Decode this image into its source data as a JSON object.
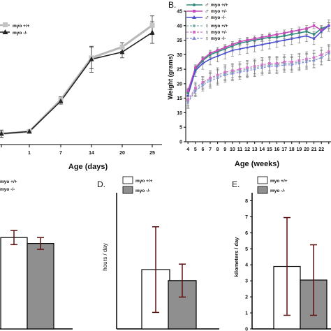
{
  "panels": {
    "A": {
      "xlabel": "Age (days)",
      "legend": [
        "myo +/+",
        "myo -/-"
      ]
    },
    "B": {
      "letter": "B.",
      "xlabel": "Age (weeks)",
      "ylabel": "Weight (grams)",
      "legend": [
        "myo +/+",
        "myo +/-",
        "myo -/-",
        "myo +/+",
        "myo +/-",
        "myo -/-"
      ]
    },
    "C": {
      "legend": [
        "myo +/+",
        "myo -/-"
      ]
    },
    "D": {
      "letter": "D.",
      "ylabel": "hours / day",
      "legend": [
        "myo +/+",
        "myo -/-"
      ]
    },
    "E": {
      "letter": "E.",
      "ylabel": "kilometers / day",
      "legend": [
        "myo +/+",
        "myo -/-"
      ]
    }
  },
  "colors": {
    "wt_line": "#b8b8b8",
    "ko_line": "#222222",
    "male_wt": "#2e8b7a",
    "male_het": "#c44bb8",
    "male_ko": "#4a4fd0",
    "female_wt": "#7fb0b0",
    "female_het": "#d070c8",
    "female_ko": "#8088d8",
    "bar_ko": "#8f8f8f",
    "error": "#5a1010"
  },
  "chart_data": [
    {
      "panel": "A",
      "type": "line",
      "x": [
        0,
        1,
        7,
        14,
        20,
        25
      ],
      "x_tick_labels": [
        "",
        "1",
        "7",
        "14",
        "20",
        "25"
      ],
      "xlabel": "Age (days)",
      "series": [
        {
          "name": "myo +/+",
          "values": [
            1.5,
            1.8,
            6.2,
            12.0,
            13.5,
            16.5
          ],
          "errors": [
            0.5,
            0.2,
            0.4,
            1.5,
            0.6,
            1.3
          ]
        },
        {
          "name": "myo -/-",
          "values": [
            1.5,
            1.8,
            6.0,
            11.8,
            12.8,
            15.5
          ],
          "errors": [
            0.5,
            0.2,
            0.4,
            1.8,
            0.8,
            1.5
          ]
        }
      ],
      "ylim": [
        0,
        20
      ]
    },
    {
      "panel": "B",
      "type": "line",
      "xlabel": "Age (weeks)",
      "ylabel": "Weight (grams)",
      "x": [
        4,
        5,
        6,
        7,
        8,
        9,
        10,
        11,
        12,
        13,
        14,
        15,
        16,
        17,
        18,
        19,
        20,
        21,
        22,
        23
      ],
      "x_tick_labels": [
        "4",
        "5",
        "6",
        "7",
        "8",
        "9",
        "10",
        "11",
        "12",
        "13",
        "14",
        "15",
        "16",
        "17",
        "18",
        "19",
        "20",
        "21",
        "22"
      ],
      "y_ticks": [
        0,
        5,
        10,
        15,
        20,
        25,
        30,
        35,
        40,
        45
      ],
      "ylim": [
        0,
        45
      ],
      "xlim": [
        3.7,
        23.3
      ],
      "series": [
        {
          "name": "myo +/+",
          "values": [
            17,
            25,
            28,
            30,
            31,
            32,
            33,
            34,
            34.5,
            35,
            35.5,
            36,
            36,
            36.5,
            37,
            37.5,
            38,
            37,
            39,
            40
          ],
          "errors": [
            1,
            1,
            1,
            1,
            1,
            1,
            1,
            1,
            1,
            1,
            1,
            1,
            1,
            1,
            1,
            1,
            1,
            1,
            1,
            1
          ]
        },
        {
          "name": "myo +/-",
          "values": [
            17.5,
            25.5,
            28.5,
            30.5,
            31.5,
            32.5,
            33.5,
            34.5,
            35,
            35.5,
            36,
            36.5,
            37,
            37.5,
            38,
            38.5,
            39,
            40,
            38.5,
            40
          ],
          "errors": [
            1,
            1,
            1,
            1,
            1,
            1,
            1,
            1,
            1,
            1,
            1,
            1,
            1,
            1,
            1,
            1,
            1,
            1,
            1,
            1
          ]
        },
        {
          "name": "myo -/-",
          "values": [
            16,
            24.5,
            27,
            28.5,
            29.5,
            30.5,
            31.5,
            32,
            32.5,
            33,
            33.5,
            34,
            34.5,
            35,
            35.5,
            36,
            36.5,
            35.5,
            38,
            40
          ],
          "errors": [
            2,
            2,
            2,
            2,
            2,
            2,
            2,
            2,
            2,
            2,
            2,
            2,
            2,
            2,
            2,
            2,
            2,
            2,
            2,
            2
          ]
        },
        {
          "name": "myo +/+",
          "values": [
            14,
            18,
            20,
            21.5,
            22.5,
            23.5,
            24,
            24.5,
            25,
            25.5,
            26,
            26.5,
            26.5,
            27,
            27,
            27.5,
            28,
            28,
            29,
            30.5
          ],
          "errors": [
            2,
            2,
            2,
            2.5,
            2.5,
            2.5,
            2.5,
            2.5,
            2.5,
            2.5,
            2.5,
            2.5,
            2.5,
            2.5,
            2.5,
            2.5,
            2.5,
            2.5,
            2.5,
            2.5
          ]
        },
        {
          "name": "myo +/-",
          "values": [
            14.5,
            18.5,
            20.5,
            22,
            23,
            24,
            24.5,
            25,
            25.5,
            26,
            26.5,
            27,
            27,
            27.5,
            27.5,
            28,
            28.5,
            29,
            30,
            31
          ],
          "errors": [
            2,
            2,
            2,
            2.5,
            2.5,
            2.5,
            2.5,
            2.5,
            2.5,
            2.5,
            2.5,
            2.5,
            2.5,
            2.5,
            2.5,
            2.5,
            2.5,
            2.5,
            2.5,
            2.5
          ]
        },
        {
          "name": "myo -/-",
          "values": [
            13.5,
            17.5,
            19.5,
            21,
            22,
            23,
            23.5,
            24,
            24.5,
            25,
            25.5,
            26,
            26,
            26.5,
            26.5,
            27,
            27.5,
            28,
            29,
            30.5
          ],
          "errors": [
            2,
            2,
            2,
            2.5,
            2.5,
            2.5,
            2.5,
            2.5,
            2.5,
            2.5,
            2.5,
            2.5,
            2.5,
            2.5,
            2.5,
            2.5,
            2.5,
            2.5,
            2.5,
            2.5
          ]
        }
      ]
    },
    {
      "panel": "C",
      "type": "bar",
      "categories": [
        "myo +/+",
        "myo -/-"
      ],
      "values": [
        1.55,
        1.45
      ],
      "errors": [
        0.12,
        0.1
      ],
      "ylim": [
        0,
        2.5
      ]
    },
    {
      "panel": "D",
      "type": "bar",
      "ylabel": "hours / day",
      "categories": [
        "myo +/+",
        "myo -/-"
      ],
      "values": [
        2.7,
        2.2
      ],
      "errors": [
        1.95,
        0.75
      ],
      "ylim": [
        0,
        6.2
      ]
    },
    {
      "panel": "E",
      "type": "bar",
      "ylabel": "kilometers / day",
      "categories": [
        "myo +/+",
        "myo -/-"
      ],
      "values": [
        3.9,
        3.05
      ],
      "errors": [
        3.05,
        2.2
      ],
      "y_ticks": [
        0,
        1,
        2,
        3,
        4,
        5,
        6,
        7,
        8
      ],
      "ylim": [
        0,
        8.5
      ]
    }
  ]
}
